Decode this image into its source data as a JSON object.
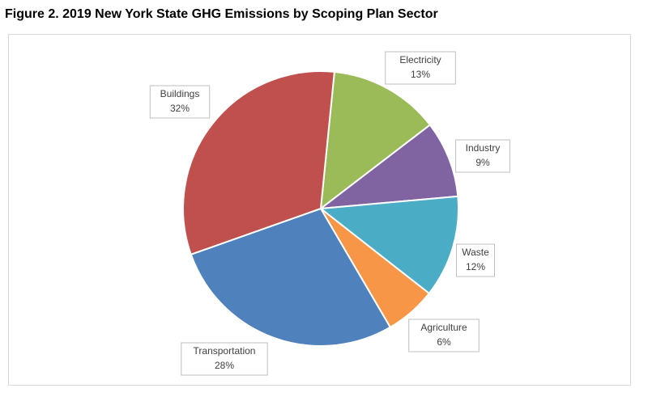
{
  "chart_data": {
    "type": "pie",
    "title": "Figure 2. 2019 New York State GHG Emissions by Scoping Plan Sector",
    "categories": [
      "Electricity",
      "Industry",
      "Waste",
      "Agriculture",
      "Transportation",
      "Buildings"
    ],
    "values": [
      13,
      9,
      12,
      6,
      28,
      32
    ],
    "value_labels": [
      "13%",
      "9%",
      "12%",
      "6%",
      "28%",
      "32%"
    ],
    "colors": [
      "#9bbb59",
      "#8064a2",
      "#4bacc6",
      "#f79646",
      "#4f81bd",
      "#c0504d"
    ]
  }
}
